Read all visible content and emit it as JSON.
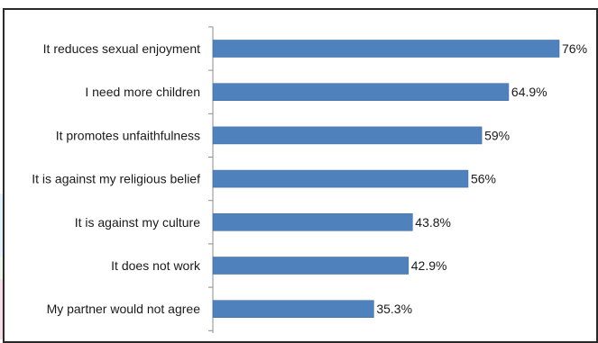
{
  "chart_data": {
    "type": "bar",
    "orientation": "horizontal",
    "categories": [
      "It reduces sexual enjoyment",
      "I need more children",
      "It promotes unfaithfulness",
      "It is against my religious belief",
      "It is against my culture",
      "It does not work",
      "My partner would not agree"
    ],
    "values": [
      76,
      64.9,
      59,
      56,
      43.8,
      42.9,
      35.3
    ],
    "value_labels": [
      "76%",
      "64.9%",
      "59%",
      "56%",
      "43.8%",
      "42.9%",
      "35.3%"
    ],
    "unit": "%",
    "xlim": [
      0,
      100
    ],
    "grid": false,
    "legend": "none",
    "bar_color": "#4f81bd"
  }
}
